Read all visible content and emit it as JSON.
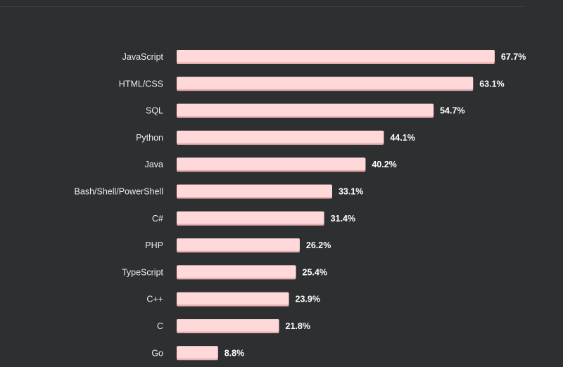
{
  "chart_data": {
    "type": "bar",
    "orientation": "horizontal",
    "categories": [
      "JavaScript",
      "HTML/CSS",
      "SQL",
      "Python",
      "Java",
      "Bash/Shell/PowerShell",
      "C#",
      "PHP",
      "TypeScript",
      "C++",
      "C",
      "Go"
    ],
    "values": [
      67.7,
      63.1,
      54.7,
      44.1,
      40.2,
      33.1,
      31.4,
      26.2,
      25.4,
      23.9,
      21.8,
      8.8
    ],
    "value_labels": [
      "67.7%",
      "63.1%",
      "54.7%",
      "44.1%",
      "40.2%",
      "33.1%",
      "31.4%",
      "26.2%",
      "25.4%",
      "23.9%",
      "21.8%",
      "8.8%"
    ],
    "unit": "%",
    "xlim": [
      0,
      100
    ],
    "grid": false,
    "title": "",
    "xlabel": "",
    "ylabel": ""
  },
  "colors": {
    "background": "#2d2f31",
    "bar_fill": "#ffd9d9",
    "bar_shadow": "#e9b0b2",
    "label_text": "#ededed",
    "value_text": "#ffffff"
  }
}
